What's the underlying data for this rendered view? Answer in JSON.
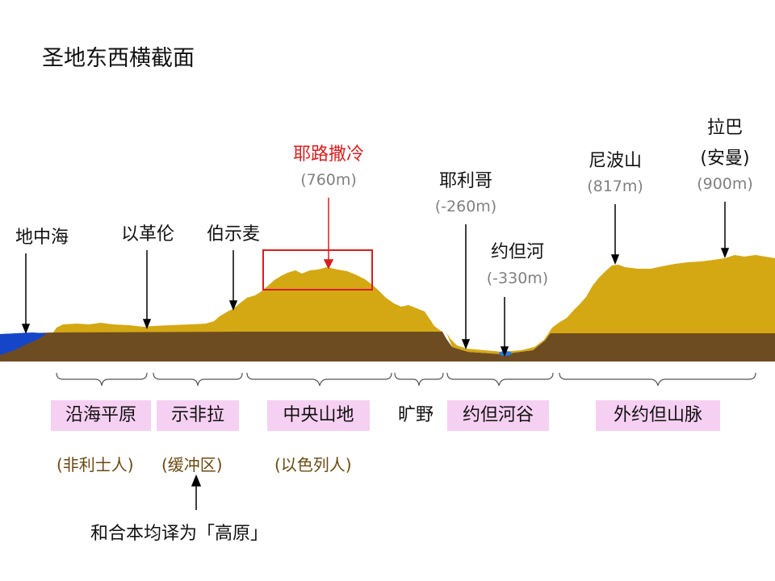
{
  "title": "圣地东西横截面",
  "places": [
    {
      "name": "地中海",
      "elevation": ""
    },
    {
      "name": "以革伦",
      "elevation": ""
    },
    {
      "name": "伯示麦",
      "elevation": ""
    },
    {
      "name": "耶路撒冷",
      "elevation": "(760m)"
    },
    {
      "name": "耶利哥",
      "elevation": "(-260m)"
    },
    {
      "name": "约但河",
      "elevation": "(-330m)"
    },
    {
      "name": "尼波山",
      "elevation": "(817m)"
    },
    {
      "name": "拉巴",
      "elevation": "(900m)",
      "subname": "(安曼)"
    }
  ],
  "regions": [
    {
      "name": "沿海平原",
      "people": "(非利士人)"
    },
    {
      "name": "示非拉",
      "people": "(缓冲区)"
    },
    {
      "name": "中央山地",
      "people": "(以色列人)"
    },
    {
      "name": "旷野",
      "people": ""
    },
    {
      "name": "约但河谷",
      "people": ""
    },
    {
      "name": "外约但山脉",
      "people": ""
    }
  ],
  "note": "和合本均译为「高原」",
  "colors": {
    "terrain": "#d4a813",
    "ground": "#6e4c22",
    "sea": "#1646c8",
    "river": "#2a7ad8",
    "highlight": "#d81e1e",
    "region_bg": "#f6d0f2",
    "people_text": "#6b4a12"
  }
}
